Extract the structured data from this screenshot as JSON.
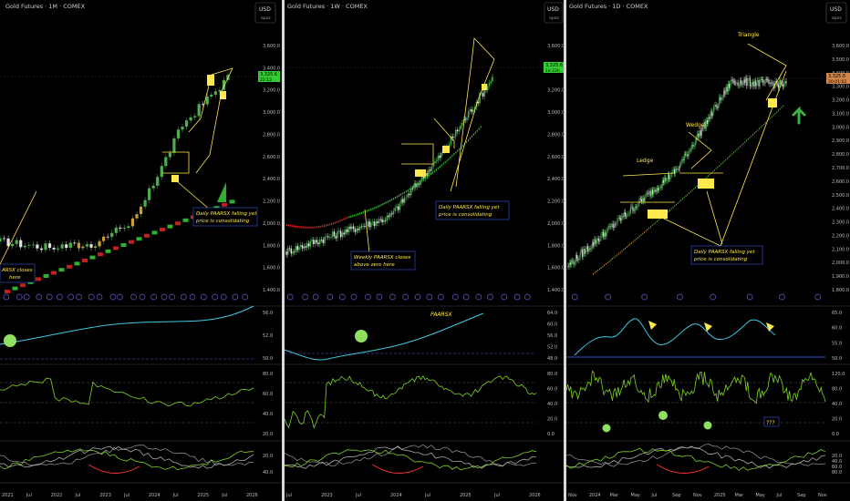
{
  "colors": {
    "background": "#000000",
    "up_candle": "#4caf50",
    "down_candle": "#e0e0e0",
    "highlight": "#c8a032",
    "pattern_line": "#ffe84d",
    "marker": "#ffe84d",
    "indicator_line": "#3ec9e0",
    "rsi_line": "#7ed321",
    "red_segment": "#ff3030",
    "price_label_bg": "#33cc33",
    "price_label_bg_daily": "#d2854b",
    "dash_line": "#4a6bff",
    "arrow_green": "#3cb043"
  },
  "panels": [
    {
      "id": "monthly",
      "title": "Gold Futures · 1M · COMEX",
      "currency": "USD",
      "scale": "apoz",
      "price_ticks": [
        "3,600.0",
        "3,400.0",
        "3,200.0",
        "3,000.0",
        "2,800.0",
        "2,600.0",
        "2,400.0",
        "2,200.0",
        "2,000.0",
        "1,800.0",
        "1,600.0",
        "1,400.0"
      ],
      "price_label": [
        "3,325.6",
        "22:12"
      ],
      "osc1_ticks": [
        "56.0",
        "52.0",
        "50.0"
      ],
      "osc2_ticks": [
        "80.0",
        "60.0",
        "40.0",
        "20.0"
      ],
      "osc3_ticks": [
        "20.0",
        "40.0"
      ],
      "x_ticks": [
        "2021",
        "Jul",
        "2022",
        "Jul",
        "2023",
        "Jul",
        "2024",
        "Jul",
        "2025",
        "Jul",
        "2026"
      ],
      "annotations": [
        {
          "id": "daily-note",
          "lines": [
            "Daily PAARSX falling yet",
            "price is consolidating"
          ]
        },
        {
          "id": "weekly-note",
          "lines": [
            "ARSX closes",
            "here"
          ]
        }
      ]
    },
    {
      "id": "weekly",
      "title": "Gold Futures · 1W · COMEX",
      "currency": "USD",
      "scale": "apoz",
      "price_ticks": [
        "3,600.0",
        "3,400.0",
        "3,200.0",
        "3,000.0",
        "2,800.0",
        "2,600.0",
        "2,400.0",
        "2,200.0",
        "2,000.0",
        "1,800.0",
        "1,600.0",
        "1,400.0"
      ],
      "price_label": [
        "3,325.6",
        "1d 22h"
      ],
      "osc1_ticks": [
        "64.0",
        "60.0",
        "56.0",
        "52.0",
        "48.0"
      ],
      "osc2_ticks": [
        "80.0",
        "60.0",
        "40.0",
        "20.0",
        "0.0"
      ],
      "osc3_ticks": [],
      "x_ticks": [
        "Jul",
        "2023",
        "Jul",
        "2024",
        "Jul",
        "2025",
        "Jul",
        "2026"
      ],
      "osc1_label": "PAARSX",
      "annotations": [
        {
          "id": "daily-note",
          "lines": [
            "Daily PAARSX falling yet",
            "price is consolidating"
          ]
        },
        {
          "id": "weekly-note",
          "lines": [
            "Weekly PAARSX closes",
            "above zero here"
          ]
        }
      ]
    },
    {
      "id": "daily",
      "title": "Gold Futures · 1D · COMEX",
      "currency": "USD",
      "scale": "apoz",
      "price_ticks": [
        "3,600.0",
        "3,500.0",
        "3,400.0",
        "3,300.0",
        "3,200.0",
        "3,100.0",
        "3,000.0",
        "2,900.0",
        "2,800.0",
        "2,700.0",
        "2,600.0",
        "2,500.0",
        "2,400.0",
        "2,300.0",
        "2,200.0",
        "2,100.0",
        "2,000.0",
        "1,900.0",
        "1,800.0"
      ],
      "price_label": [
        "3,325.6",
        "20:01:02"
      ],
      "osc1_ticks": [
        "65.0",
        "60.0",
        "55.0",
        "50.0"
      ],
      "osc2_ticks": [
        "120.0",
        "80.0",
        "40.0",
        "20.0",
        "0.0"
      ],
      "osc3_ticks": [
        "20.0",
        "40.0",
        "60.0",
        "80.0"
      ],
      "x_ticks": [
        "Nov",
        "2024",
        "Mar",
        "May",
        "Jul",
        "Sep",
        "Nov",
        "2025",
        "Mar",
        "May",
        "Jul",
        "Sep",
        "Nov"
      ],
      "annotations": [
        {
          "id": "daily-note",
          "lines": [
            "Daily PAARSX falling yet",
            "price is consolidating"
          ]
        }
      ],
      "pattern_labels": [
        "Ledge",
        "Wedge",
        "Triangle"
      ],
      "question_badge": "???"
    }
  ],
  "chart_data": [
    {
      "type": "line",
      "title": "Gold Futures · 1M · COMEX",
      "xlabel": "",
      "ylabel": "",
      "x": [
        "2021",
        "2022",
        "2023",
        "2024",
        "2025"
      ],
      "series": [
        {
          "values": [
            1850,
            1800,
            1820,
            2065,
            2900
          ]
        }
      ],
      "ylim": [
        1400,
        3600
      ],
      "last_price": 3325.6
    },
    {
      "type": "line",
      "title": "Gold Futures · 1W · COMEX",
      "xlabel": "",
      "ylabel": "",
      "x": [
        "2022",
        "2023",
        "2024",
        "2025"
      ],
      "series": [
        {
          "values": [
            1760,
            1920,
            2070,
            2630
          ]
        }
      ],
      "ylim": [
        1400,
        3600
      ],
      "last_price": 3325.6
    },
    {
      "type": "line",
      "title": "Gold Futures · 1D · COMEX",
      "xlabel": "",
      "ylabel": "",
      "x": [
        "2023-11",
        "2024-05",
        "2024-11",
        "2025-05"
      ],
      "series": [
        {
          "values": [
            1990,
            2350,
            2700,
            3350
          ]
        }
      ],
      "ylim": [
        1800,
        3600
      ],
      "last_price": 3325.6
    }
  ]
}
